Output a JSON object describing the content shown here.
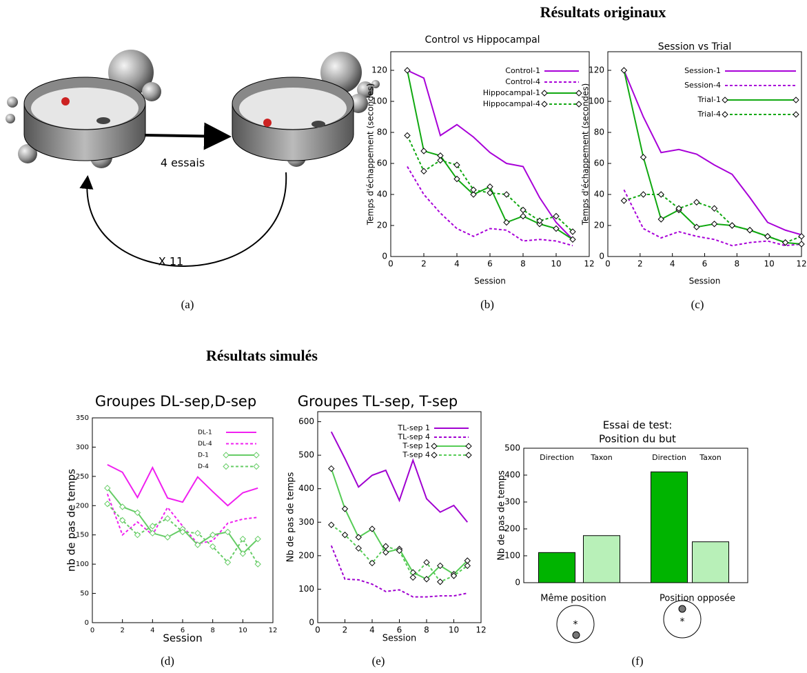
{
  "headings": [
    "Résultats originaux",
    "Résultats simulés"
  ],
  "captions": [
    "(a)",
    "(b)",
    "(c)",
    "(d)",
    "(e)",
    "(f)"
  ],
  "diagram": {
    "labels": [
      "4 essais",
      "X 11"
    ]
  },
  "chart_data": [
    {
      "type": "line",
      "title": "Control vs Hippocampal",
      "xlabel": "Session",
      "ylabel": "Temps d'échappement (secondes)",
      "x": [
        1,
        2,
        3,
        4,
        5,
        6,
        7,
        8,
        9,
        10,
        11
      ],
      "xlim": [
        0,
        12
      ],
      "xticks": [
        0,
        2,
        4,
        6,
        8,
        10,
        12
      ],
      "ylim": [
        0,
        132
      ],
      "yticks": [
        0,
        20,
        40,
        60,
        80,
        100,
        120
      ],
      "series": [
        {
          "name": "Control-1",
          "color": "#a800d8",
          "style": "solid",
          "values": [
            120,
            115,
            78,
            85,
            77,
            67,
            60,
            58,
            38,
            22,
            11
          ]
        },
        {
          "name": "Control-4",
          "color": "#a800d8",
          "style": "dashed",
          "values": [
            58,
            40,
            28,
            18,
            13,
            18,
            17,
            10,
            11,
            10,
            7
          ]
        },
        {
          "name": "Hippocampal-1",
          "color": "#10a810",
          "style": "solid",
          "marker": "diamond",
          "marker_color": "#000000",
          "values": [
            120,
            68,
            65,
            50,
            40,
            45,
            22,
            26,
            21,
            18,
            11
          ]
        },
        {
          "name": "Hippocampal-4",
          "color": "#10a810",
          "style": "dashed",
          "marker": "diamond",
          "marker_color": "#000000",
          "values": [
            78,
            55,
            62,
            59,
            43,
            41,
            40,
            30,
            23,
            26,
            16
          ]
        }
      ]
    },
    {
      "type": "line",
      "title": "Session vs Trial",
      "xlabel": "Session",
      "ylabel": "Temps d'échappement (secondes)",
      "x": [
        1,
        2.2,
        3.3,
        4.4,
        5.5,
        6.6,
        7.7,
        8.8,
        9.9,
        11,
        12
      ],
      "xlim": [
        0,
        12
      ],
      "xticks": [
        0,
        2,
        4,
        6,
        8,
        10,
        12
      ],
      "ylim": [
        0,
        132
      ],
      "yticks": [
        0,
        20,
        40,
        60,
        80,
        100,
        120
      ],
      "series": [
        {
          "name": "Session-1",
          "color": "#a800d8",
          "style": "solid",
          "values": [
            120,
            90,
            67,
            69,
            66,
            59,
            53,
            38,
            22,
            17,
            14
          ]
        },
        {
          "name": "Session-4",
          "color": "#a800d8",
          "style": "dashed",
          "values": [
            43,
            18,
            12,
            16,
            13,
            11,
            7,
            9,
            10,
            7,
            8
          ]
        },
        {
          "name": "Trial-1",
          "color": "#10a810",
          "style": "solid",
          "marker": "diamond",
          "marker_color": "#000000",
          "values": [
            120,
            64,
            24,
            30,
            19,
            21,
            20,
            17,
            13,
            9,
            8
          ]
        },
        {
          "name": "Trial-4",
          "color": "#10a810",
          "style": "dashed",
          "marker": "diamond",
          "marker_color": "#000000",
          "values": [
            36,
            40,
            40,
            31,
            35,
            31,
            20,
            17,
            13,
            9,
            13
          ]
        }
      ]
    },
    {
      "type": "line",
      "title": "Groupes DL-sep,D-sep",
      "xlabel": "Session",
      "ylabel": "nb de pas de temps",
      "x": [
        1,
        2,
        3,
        4,
        5,
        6,
        7,
        8,
        9,
        10,
        11
      ],
      "xlim": [
        0,
        12
      ],
      "xticks": [
        0,
        2,
        4,
        6,
        8,
        10,
        12
      ],
      "ylim": [
        0,
        350
      ],
      "yticks": [
        0,
        50,
        100,
        150,
        200,
        250,
        300,
        350
      ],
      "series": [
        {
          "name": "DL-1",
          "color": "#f020f0",
          "style": "solid",
          "values": [
            270,
            257,
            214,
            265,
            213,
            206,
            249,
            224,
            200,
            222,
            230
          ]
        },
        {
          "name": "DL-4",
          "color": "#f020f0",
          "style": "dashed",
          "values": [
            220,
            150,
            172,
            150,
            197,
            165,
            135,
            140,
            170,
            177,
            180
          ]
        },
        {
          "name": "D-1",
          "color": "#66cc66",
          "style": "solid",
          "marker": "diamond",
          "marker_color": "#66cc66",
          "values": [
            230,
            198,
            188,
            153,
            146,
            160,
            133,
            150,
            155,
            118,
            143
          ]
        },
        {
          "name": "D-4",
          "color": "#66cc66",
          "style": "dashed",
          "marker": "diamond",
          "marker_color": "#66cc66",
          "values": [
            203,
            175,
            150,
            165,
            178,
            155,
            153,
            130,
            103,
            143,
            100
          ]
        }
      ]
    },
    {
      "type": "line",
      "title": "Groupes TL-sep, T-sep",
      "xlabel": "Session",
      "ylabel": "Nb de pas de temps",
      "x": [
        1,
        2,
        3,
        4,
        5,
        6,
        7,
        8,
        9,
        10,
        11
      ],
      "xlim": [
        0,
        12
      ],
      "xticks": [
        0,
        2,
        4,
        6,
        8,
        10,
        12
      ],
      "ylim": [
        0,
        630
      ],
      "yticks": [
        0,
        100,
        200,
        300,
        400,
        500,
        600
      ],
      "series": [
        {
          "name": "TL-sep 1",
          "color": "#a000d0",
          "style": "solid",
          "values": [
            570,
            490,
            405,
            440,
            455,
            365,
            485,
            370,
            330,
            350,
            300
          ]
        },
        {
          "name": "TL-sep 4",
          "color": "#a000d0",
          "style": "dashed",
          "values": [
            230,
            130,
            128,
            115,
            93,
            98,
            77,
            77,
            80,
            80,
            88
          ]
        },
        {
          "name": "T-sep 1",
          "color": "#55cc55",
          "style": "solid",
          "marker": "diamond",
          "marker_color": "#000000",
          "values": [
            460,
            340,
            255,
            280,
            210,
            220,
            150,
            130,
            170,
            145,
            185
          ]
        },
        {
          "name": "T-sep 4",
          "color": "#55cc55",
          "style": "dashed",
          "marker": "diamond",
          "marker_color": "#000000",
          "values": [
            292,
            262,
            222,
            178,
            228,
            215,
            135,
            180,
            122,
            140,
            170
          ]
        }
      ]
    },
    {
      "type": "bar",
      "title": [
        "Essai de test:",
        "Position du but"
      ],
      "ylabel": "Nb de pas de temps",
      "categories": [
        "Direction",
        "Taxon",
        "Direction",
        "Taxon"
      ],
      "values": [
        112,
        175,
        412,
        152
      ],
      "colors": [
        "#00b400",
        "#b8f0b8",
        "#00b400",
        "#b8f0b8"
      ],
      "groups": [
        "Même position",
        "Position opposée"
      ],
      "ylim": [
        0,
        500
      ],
      "yticks": [
        0,
        100,
        200,
        300,
        400,
        500
      ]
    }
  ]
}
